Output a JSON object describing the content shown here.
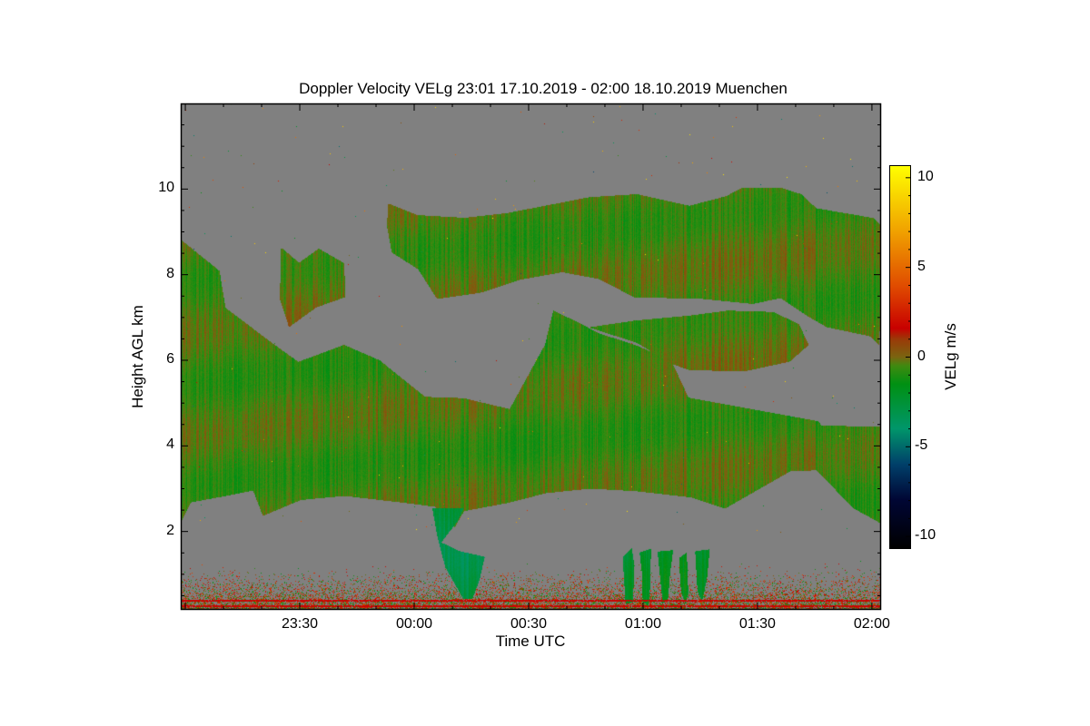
{
  "chart_data": {
    "type": "heatmap",
    "title": "Doppler Velocity VELg   23:01 17.10.2019 - 02:00 18.10.2019 Muenchen",
    "xlabel": "Time UTC",
    "ylabel": "Height AGL km",
    "colorbar_label": "VELg m/s",
    "x_units": "minutes after 23:00 UTC",
    "xlim": [
      -1.2,
      182.4
    ],
    "ylim": [
      0.17,
      12.0
    ],
    "x_ticks": [
      {
        "value": 30,
        "label": "23:30"
      },
      {
        "value": 60,
        "label": "00:00"
      },
      {
        "value": 90,
        "label": "00:30"
      },
      {
        "value": 120,
        "label": "01:00"
      },
      {
        "value": 150,
        "label": "01:30"
      },
      {
        "value": 180,
        "label": "02:00"
      }
    ],
    "y_ticks": [
      {
        "value": 2,
        "label": "2"
      },
      {
        "value": 4,
        "label": "4"
      },
      {
        "value": 6,
        "label": "6"
      },
      {
        "value": 8,
        "label": "8"
      },
      {
        "value": 10,
        "label": "10"
      }
    ],
    "colorbar": {
      "range": [
        -10.7,
        10.7
      ],
      "ticks": [
        {
          "value": 10,
          "label": "10"
        },
        {
          "value": 5,
          "label": "5"
        },
        {
          "value": 0,
          "label": "0"
        },
        {
          "value": -5,
          "label": "-5"
        },
        {
          "value": -10,
          "label": "-10"
        }
      ],
      "stops": [
        [
          -10.7,
          "#000000"
        ],
        [
          -8,
          "#000634"
        ],
        [
          -6,
          "#00406a"
        ],
        [
          -4,
          "#00966a"
        ],
        [
          -1.5,
          "#009012"
        ],
        [
          -0.5,
          "#3f8a10"
        ],
        [
          0,
          "#7a6410"
        ],
        [
          1,
          "#9a3a08"
        ],
        [
          1.6,
          "#c80000"
        ],
        [
          4,
          "#e04c00"
        ],
        [
          7,
          "#f0a000"
        ],
        [
          10.7,
          "#ffff00"
        ]
      ]
    },
    "no_data_color": "#808080",
    "echo_regions": [
      {
        "name": "main-layer",
        "mean_velocity": -0.6,
        "polygon": [
          [
            -1.2,
            8.83
          ],
          [
            8.6,
            8.09
          ],
          [
            11,
            7.23
          ],
          [
            22.9,
            6.38
          ],
          [
            30,
            5.96
          ],
          [
            41.9,
            6.38
          ],
          [
            51.4,
            5.96
          ],
          [
            63.3,
            5.11
          ],
          [
            72.9,
            5.11
          ],
          [
            84.8,
            4.89
          ],
          [
            94.3,
            6.38
          ],
          [
            96.7,
            7.13
          ],
          [
            103.8,
            6.81
          ],
          [
            108.6,
            6.6
          ],
          [
            118.1,
            6.38
          ],
          [
            127.6,
            5.96
          ],
          [
            132.4,
            5.11
          ],
          [
            165.7,
            4.57
          ],
          [
            166.9,
            4.47
          ],
          [
            182.4,
            4.47
          ],
          [
            182.4,
            2.23
          ],
          [
            175.2,
            2.55
          ],
          [
            165.7,
            3.4
          ],
          [
            158.6,
            3.4
          ],
          [
            141.9,
            2.55
          ],
          [
            132.4,
            2.77
          ],
          [
            118.1,
            2.98
          ],
          [
            106.2,
            2.98
          ],
          [
            94.3,
            2.87
          ],
          [
            84.8,
            2.66
          ],
          [
            72.9,
            2.45
          ],
          [
            70.5,
            2.13
          ],
          [
            65.7,
            2.55
          ],
          [
            58.6,
            2.66
          ],
          [
            41.9,
            2.87
          ],
          [
            30,
            2.77
          ],
          [
            20.5,
            2.34
          ],
          [
            18.1,
            2.98
          ],
          [
            11,
            2.87
          ],
          [
            1.4,
            2.66
          ],
          [
            -1.2,
            2.23
          ]
        ]
      },
      {
        "name": "upper-layer",
        "mean_velocity": -0.5,
        "polygon": [
          [
            53.3,
            9.68
          ],
          [
            61,
            9.36
          ],
          [
            72.9,
            9.36
          ],
          [
            84.8,
            9.47
          ],
          [
            94.3,
            9.57
          ],
          [
            106.2,
            9.79
          ],
          [
            118.1,
            9.89
          ],
          [
            132.4,
            9.57
          ],
          [
            141.9,
            9.79
          ],
          [
            145.5,
            10.0
          ],
          [
            156.2,
            10.0
          ],
          [
            161,
            9.89
          ],
          [
            165.7,
            9.57
          ],
          [
            180,
            9.36
          ],
          [
            182.4,
            9.15
          ],
          [
            182.4,
            6.38
          ],
          [
            180,
            6.6
          ],
          [
            168.1,
            6.81
          ],
          [
            163.3,
            7.02
          ],
          [
            156.2,
            7.45
          ],
          [
            149,
            7.34
          ],
          [
            134.8,
            7.45
          ],
          [
            118.1,
            7.45
          ],
          [
            108.6,
            7.87
          ],
          [
            99,
            8.09
          ],
          [
            87.1,
            7.87
          ],
          [
            77.6,
            7.55
          ],
          [
            65.7,
            7.45
          ],
          [
            61,
            8.09
          ],
          [
            53.8,
            8.51
          ],
          [
            53.3,
            9.15
          ]
        ]
      },
      {
        "name": "middle-layer",
        "mean_velocity": -0.4,
        "polygon": [
          [
            106.2,
            6.81
          ],
          [
            118.1,
            6.91
          ],
          [
            132.4,
            7.02
          ],
          [
            141.9,
            7.13
          ],
          [
            153.8,
            7.13
          ],
          [
            161,
            6.81
          ],
          [
            163.3,
            6.38
          ],
          [
            158.6,
            5.96
          ],
          [
            146.7,
            5.74
          ],
          [
            132.4,
            5.74
          ],
          [
            127.6,
            5.96
          ],
          [
            118.1,
            6.38
          ]
        ]
      },
      {
        "name": "left-upper-clumps",
        "mean_velocity": -0.3,
        "polygon": [
          [
            25.2,
            8.62
          ],
          [
            30,
            8.3
          ],
          [
            34.8,
            8.62
          ],
          [
            41.9,
            8.3
          ],
          [
            41.9,
            7.45
          ],
          [
            34.8,
            7.23
          ],
          [
            27.6,
            6.81
          ],
          [
            25.2,
            7.45
          ]
        ]
      },
      {
        "name": "fall-streak-0010",
        "mean_velocity": -3.0,
        "polygon": [
          [
            64.5,
            2.55
          ],
          [
            72.9,
            2.55
          ],
          [
            71.7,
            2.23
          ],
          [
            66.9,
            1.7
          ],
          [
            71.7,
            1.53
          ],
          [
            78.8,
            1.45
          ],
          [
            77.6,
            0.85
          ],
          [
            75.2,
            0.43
          ],
          [
            72.9,
            0.43
          ],
          [
            68.1,
            1.17
          ],
          [
            65.7,
            1.91
          ]
        ]
      },
      {
        "name": "fall-streak-0100-a",
        "mean_velocity": -2.2,
        "polygon": [
          [
            114.5,
            1.38
          ],
          [
            116.9,
            1.6
          ],
          [
            118.1,
            1.2
          ],
          [
            116.9,
            0.32
          ],
          [
            115.5,
            0.32
          ]
        ]
      },
      {
        "name": "fall-streak-0100-b",
        "mean_velocity": -2.2,
        "polygon": [
          [
            119.3,
            1.5
          ],
          [
            122.4,
            1.6
          ],
          [
            122.4,
            0.8
          ],
          [
            121.5,
            0.32
          ],
          [
            120.3,
            0.32
          ],
          [
            119.8,
            1.0
          ]
        ]
      },
      {
        "name": "fall-streak-0100-c",
        "mean_velocity": -2.0,
        "polygon": [
          [
            124,
            1.5
          ],
          [
            127.6,
            1.6
          ],
          [
            127.6,
            1.1
          ],
          [
            126.5,
            0.32
          ],
          [
            125.4,
            0.32
          ]
        ]
      },
      {
        "name": "fall-streak-0100-d",
        "mean_velocity": -2.0,
        "polygon": [
          [
            129.5,
            1.4
          ],
          [
            131.9,
            1.5
          ],
          [
            131.5,
            0.6
          ],
          [
            130.7,
            0.32
          ],
          [
            129.8,
            0.6
          ]
        ]
      },
      {
        "name": "fall-streak-0100-e",
        "mean_velocity": -2.3,
        "polygon": [
          [
            133.6,
            1.55
          ],
          [
            137.1,
            1.6
          ],
          [
            137.1,
            0.9
          ],
          [
            135.8,
            0.32
          ],
          [
            134.6,
            0.6
          ]
        ]
      }
    ],
    "ground_clutter": {
      "top_km": 1.3,
      "velocity_range": [
        -2,
        4
      ],
      "red_line_km": 0.4
    }
  }
}
